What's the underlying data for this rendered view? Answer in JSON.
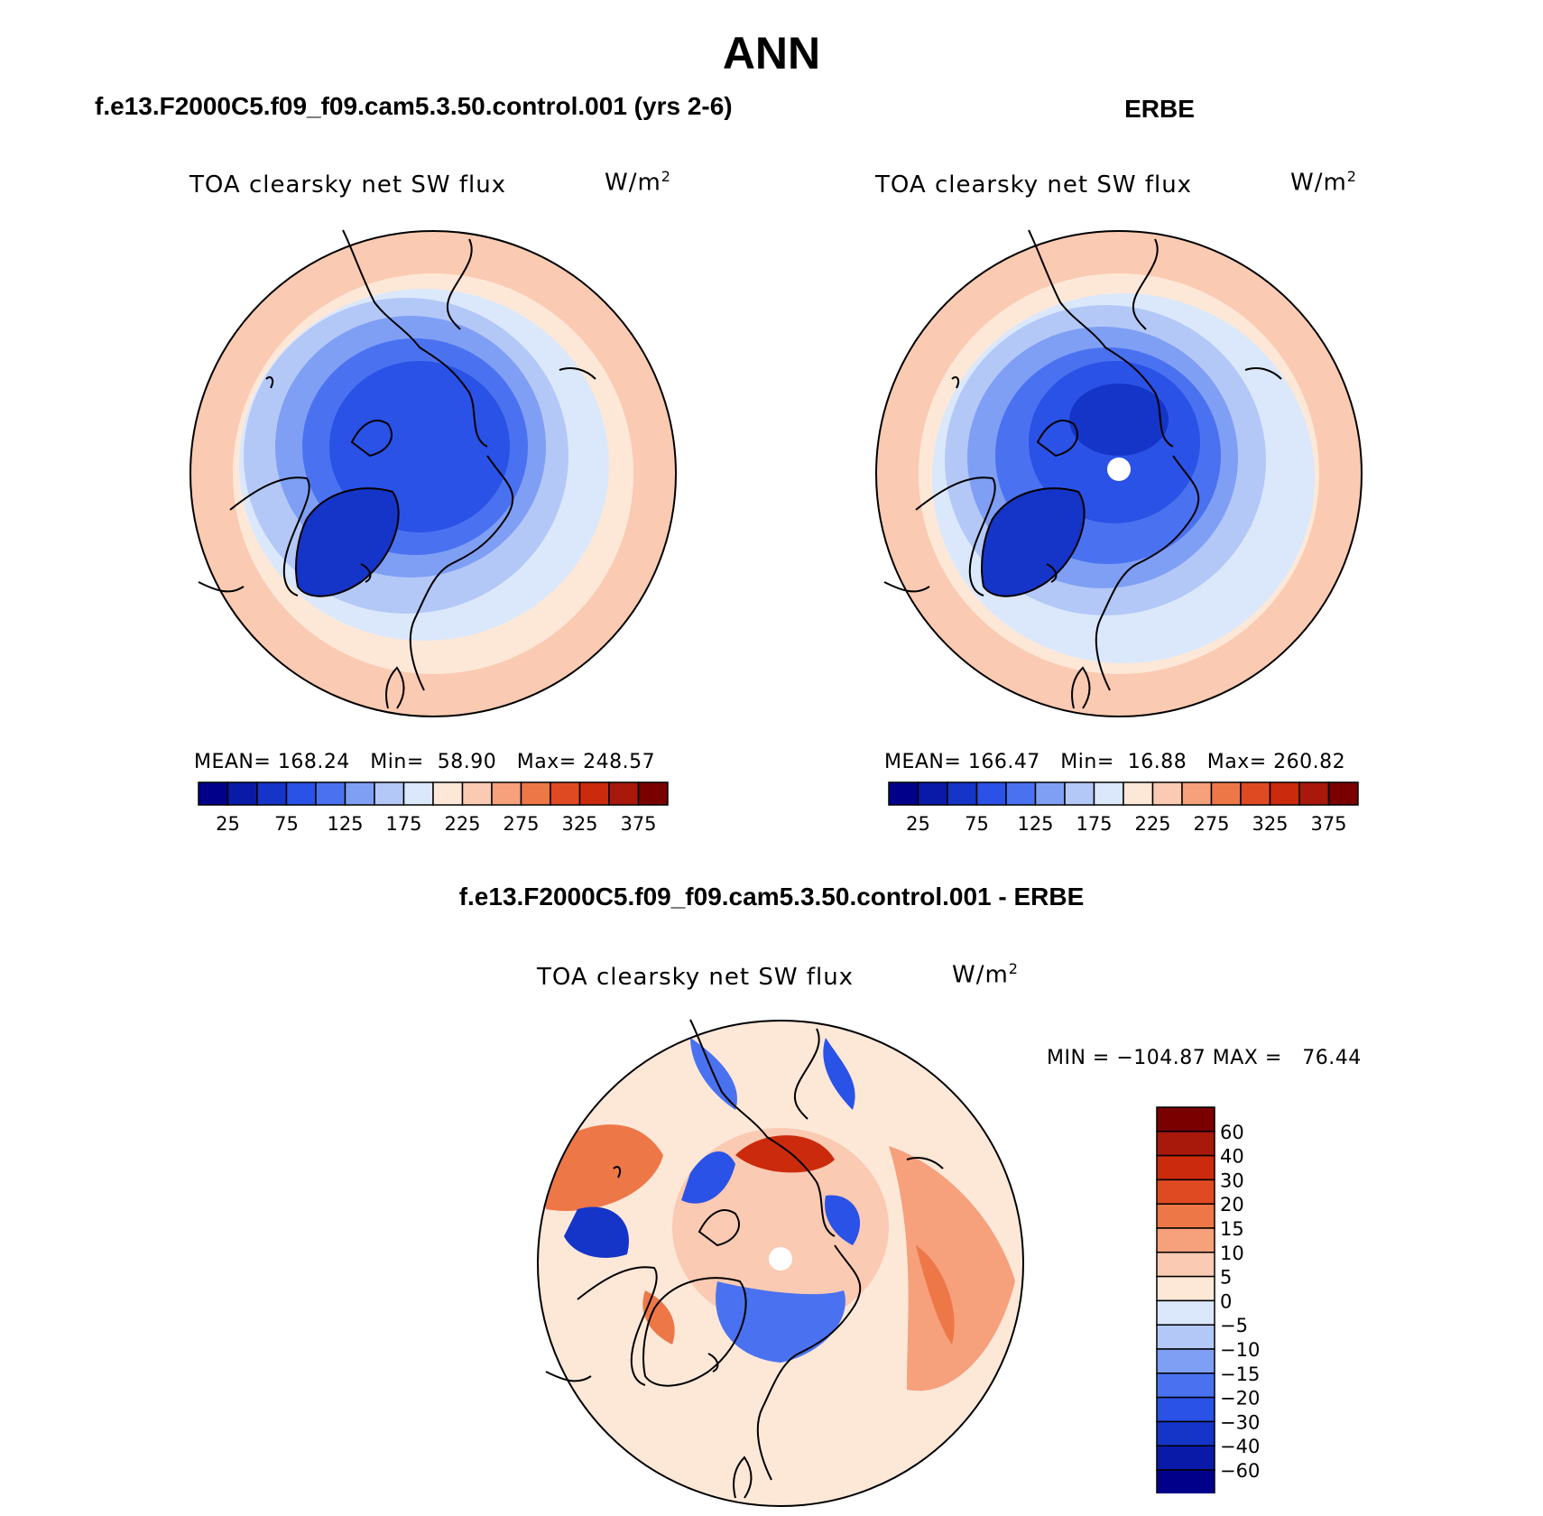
{
  "figure": {
    "title": "ANN",
    "left_caption": "f.e13.F2000C5.f09_f09.cam5.3.50.control.001 (yrs 2-6)",
    "right_caption": "ERBE",
    "bottom_caption": "f.e13.F2000C5.f09_f09.cam5.3.50.control.001 - ERBE"
  },
  "panels": {
    "model": {
      "variable": "TOA clearsky net SW flux",
      "units": "W/m",
      "units_sup": "2",
      "mean_label": "MEAN=",
      "mean_value": "168.24",
      "min_label": "Min=",
      "min_value": "58.90",
      "max_label": "Max=",
      "max_value": "248.57"
    },
    "obs": {
      "variable": "TOA clearsky net SW flux",
      "units": "W/m",
      "units_sup": "2",
      "mean_label": "MEAN=",
      "mean_value": "166.47",
      "min_label": "Min=",
      "min_value": "16.88",
      "max_label": "Max=",
      "max_value": "260.82"
    },
    "diff": {
      "variable": "TOA clearsky net SW flux",
      "units": "W/m",
      "units_sup": "2",
      "stats": "MIN = −104.87 MAX =   76.44"
    }
  },
  "colorbars": {
    "absolute": {
      "colors": [
        "#00008b",
        "#0a1aa8",
        "#1535c8",
        "#2a52e6",
        "#4a72f0",
        "#7f9ff4",
        "#b3c8f7",
        "#dbe8fb",
        "#fde8d8",
        "#fbcab2",
        "#f6a07c",
        "#ee7748",
        "#e04a22",
        "#cc2a0c",
        "#a8180b",
        "#7a0000"
      ],
      "tick_labels": [
        "25",
        "75",
        "125",
        "175",
        "225",
        "275",
        "325",
        "375"
      ]
    },
    "difference": {
      "colors": [
        "#7a0000",
        "#a8180b",
        "#cc2a0c",
        "#e04a22",
        "#ee7748",
        "#f6a07c",
        "#fbcab2",
        "#fde8d8",
        "#dbe8fb",
        "#b3c8f7",
        "#7f9ff4",
        "#4a72f0",
        "#2a52e6",
        "#1535c8",
        "#0a1aa8",
        "#00008b"
      ],
      "tick_labels": [
        "60",
        "40",
        "30",
        "20",
        "15",
        "10",
        "5",
        "0",
        "−5",
        "−10",
        "−15",
        "−20",
        "−30",
        "−40",
        "−60"
      ]
    }
  }
}
